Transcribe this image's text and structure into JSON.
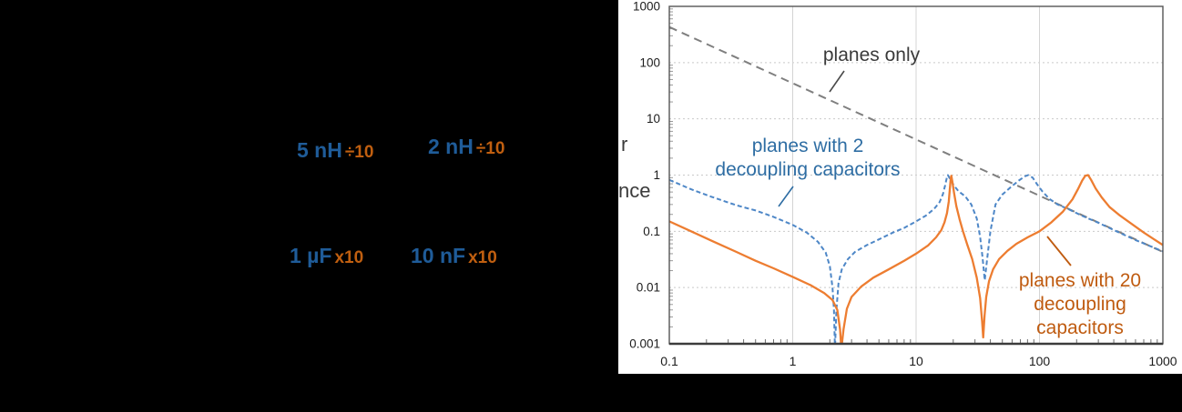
{
  "left_panel": {
    "components": [
      {
        "value": "5 nH",
        "factor": "÷10"
      },
      {
        "value": "2 nH",
        "factor": "÷10"
      },
      {
        "value": "1 µF",
        "factor": "x10"
      },
      {
        "value": "10 nF",
        "factor": "x10"
      }
    ],
    "value_color": "#1f5c99",
    "factor_color": "#c05f10",
    "background_color": "#000000"
  },
  "chart_data": {
    "type": "line",
    "x_axis": {
      "scale": "log",
      "min": 0.1,
      "max": 1000,
      "tick_labels": [
        "0.1",
        "1",
        "10",
        "100",
        "1000"
      ]
    },
    "y_axis": {
      "scale": "log",
      "min": 0.001,
      "max": 1000,
      "tick_labels": [
        "1000",
        "100",
        "10",
        "1",
        "0.1",
        "0.01",
        "0.001"
      ],
      "label_fragments": [
        "r",
        "nce"
      ]
    },
    "grid": {
      "vertical": "solid",
      "horizontal": "dotted"
    },
    "series": [
      {
        "name": "planes only",
        "style": "dashed",
        "color": "#7f7f7f",
        "width": 2,
        "points": [
          [
            0.1,
            430
          ],
          [
            1000,
            0.043
          ]
        ]
      },
      {
        "name": "planes with 2 decoupling capacitors",
        "style": "dashed",
        "color": "#4e87c7",
        "width": 2,
        "points": [
          [
            0.1,
            0.82
          ],
          [
            0.15,
            0.56
          ],
          [
            0.22,
            0.41
          ],
          [
            0.35,
            0.29
          ],
          [
            0.5,
            0.235
          ],
          [
            0.7,
            0.18
          ],
          [
            1,
            0.13
          ],
          [
            1.3,
            0.095
          ],
          [
            1.6,
            0.065
          ],
          [
            1.85,
            0.042
          ],
          [
            2.0,
            0.024
          ],
          [
            2.1,
            0.01
          ],
          [
            2.16,
            0.004
          ],
          [
            2.2,
            0.0008
          ],
          [
            2.26,
            0.004
          ],
          [
            2.35,
            0.012
          ],
          [
            2.5,
            0.021
          ],
          [
            2.8,
            0.032
          ],
          [
            3.2,
            0.043
          ],
          [
            4,
            0.057
          ],
          [
            5,
            0.072
          ],
          [
            6.5,
            0.095
          ],
          [
            8,
            0.115
          ],
          [
            10,
            0.15
          ],
          [
            12,
            0.19
          ],
          [
            14,
            0.25
          ],
          [
            15.5,
            0.33
          ],
          [
            16.5,
            0.46
          ],
          [
            17.2,
            0.66
          ],
          [
            17.8,
            0.92
          ],
          [
            18.1,
            1.0
          ],
          [
            18.7,
            0.88
          ],
          [
            20,
            0.68
          ],
          [
            22,
            0.52
          ],
          [
            25,
            0.42
          ],
          [
            28,
            0.3
          ],
          [
            31,
            0.17
          ],
          [
            33,
            0.08
          ],
          [
            34.5,
            0.035
          ],
          [
            36,
            0.0135
          ],
          [
            37.5,
            0.03
          ],
          [
            40,
            0.1
          ],
          [
            44,
            0.3
          ],
          [
            50,
            0.45
          ],
          [
            58,
            0.6
          ],
          [
            68,
            0.8
          ],
          [
            76,
            0.95
          ],
          [
            81,
            1.0
          ],
          [
            88,
            0.9
          ],
          [
            95,
            0.7
          ],
          [
            105,
            0.52
          ],
          [
            120,
            0.38
          ],
          [
            140,
            0.3
          ],
          [
            170,
            0.25
          ],
          [
            220,
            0.19
          ],
          [
            300,
            0.142
          ],
          [
            420,
            0.1
          ],
          [
            600,
            0.07
          ],
          [
            1000,
            0.044
          ]
        ]
      },
      {
        "name": "planes with 20 decoupling capacitors",
        "style": "solid",
        "color": "#ed7d31",
        "width": 2.3,
        "points": [
          [
            0.1,
            0.15
          ],
          [
            0.15,
            0.1
          ],
          [
            0.22,
            0.068
          ],
          [
            0.35,
            0.043
          ],
          [
            0.5,
            0.03
          ],
          [
            0.7,
            0.022
          ],
          [
            1,
            0.0155
          ],
          [
            1.4,
            0.011
          ],
          [
            1.8,
            0.008
          ],
          [
            2.1,
            0.006
          ],
          [
            2.3,
            0.004
          ],
          [
            2.42,
            0.0018
          ],
          [
            2.48,
            0.0008
          ],
          [
            2.58,
            0.0018
          ],
          [
            2.75,
            0.0042
          ],
          [
            3,
            0.0068
          ],
          [
            3.6,
            0.0105
          ],
          [
            4.5,
            0.015
          ],
          [
            6,
            0.021
          ],
          [
            8,
            0.03
          ],
          [
            10,
            0.04
          ],
          [
            12.5,
            0.056
          ],
          [
            14.5,
            0.078
          ],
          [
            16,
            0.105
          ],
          [
            17,
            0.145
          ],
          [
            17.8,
            0.21
          ],
          [
            18.4,
            0.34
          ],
          [
            18.8,
            0.58
          ],
          [
            19.1,
            0.88
          ],
          [
            19.3,
            0.97
          ],
          [
            19.7,
            0.75
          ],
          [
            20.3,
            0.48
          ],
          [
            21.2,
            0.28
          ],
          [
            22.5,
            0.165
          ],
          [
            24,
            0.1
          ],
          [
            26,
            0.058
          ],
          [
            28.5,
            0.032
          ],
          [
            31,
            0.015
          ],
          [
            33,
            0.0065
          ],
          [
            34.3,
            0.0025
          ],
          [
            35,
            0.0013
          ],
          [
            35.9,
            0.0032
          ],
          [
            37,
            0.0068
          ],
          [
            39,
            0.013
          ],
          [
            42,
            0.021
          ],
          [
            47,
            0.032
          ],
          [
            55,
            0.045
          ],
          [
            65,
            0.06
          ],
          [
            80,
            0.078
          ],
          [
            100,
            0.1
          ],
          [
            125,
            0.145
          ],
          [
            155,
            0.225
          ],
          [
            185,
            0.37
          ],
          [
            205,
            0.56
          ],
          [
            222,
            0.8
          ],
          [
            235,
            0.97
          ],
          [
            248,
            1.0
          ],
          [
            262,
            0.82
          ],
          [
            285,
            0.58
          ],
          [
            320,
            0.4
          ],
          [
            370,
            0.27
          ],
          [
            450,
            0.19
          ],
          [
            560,
            0.135
          ],
          [
            700,
            0.095
          ],
          [
            850,
            0.072
          ],
          [
            1000,
            0.057
          ]
        ]
      }
    ],
    "annotations": [
      {
        "lines": [
          "planes only"
        ],
        "color": "#3a3a3a"
      },
      {
        "lines": [
          "planes with 2",
          "decoupling capacitors"
        ],
        "color": "#2e6da3"
      },
      {
        "lines": [
          "planes with 20",
          "decoupling",
          "capacitors"
        ],
        "color": "#bf5b10"
      }
    ]
  }
}
